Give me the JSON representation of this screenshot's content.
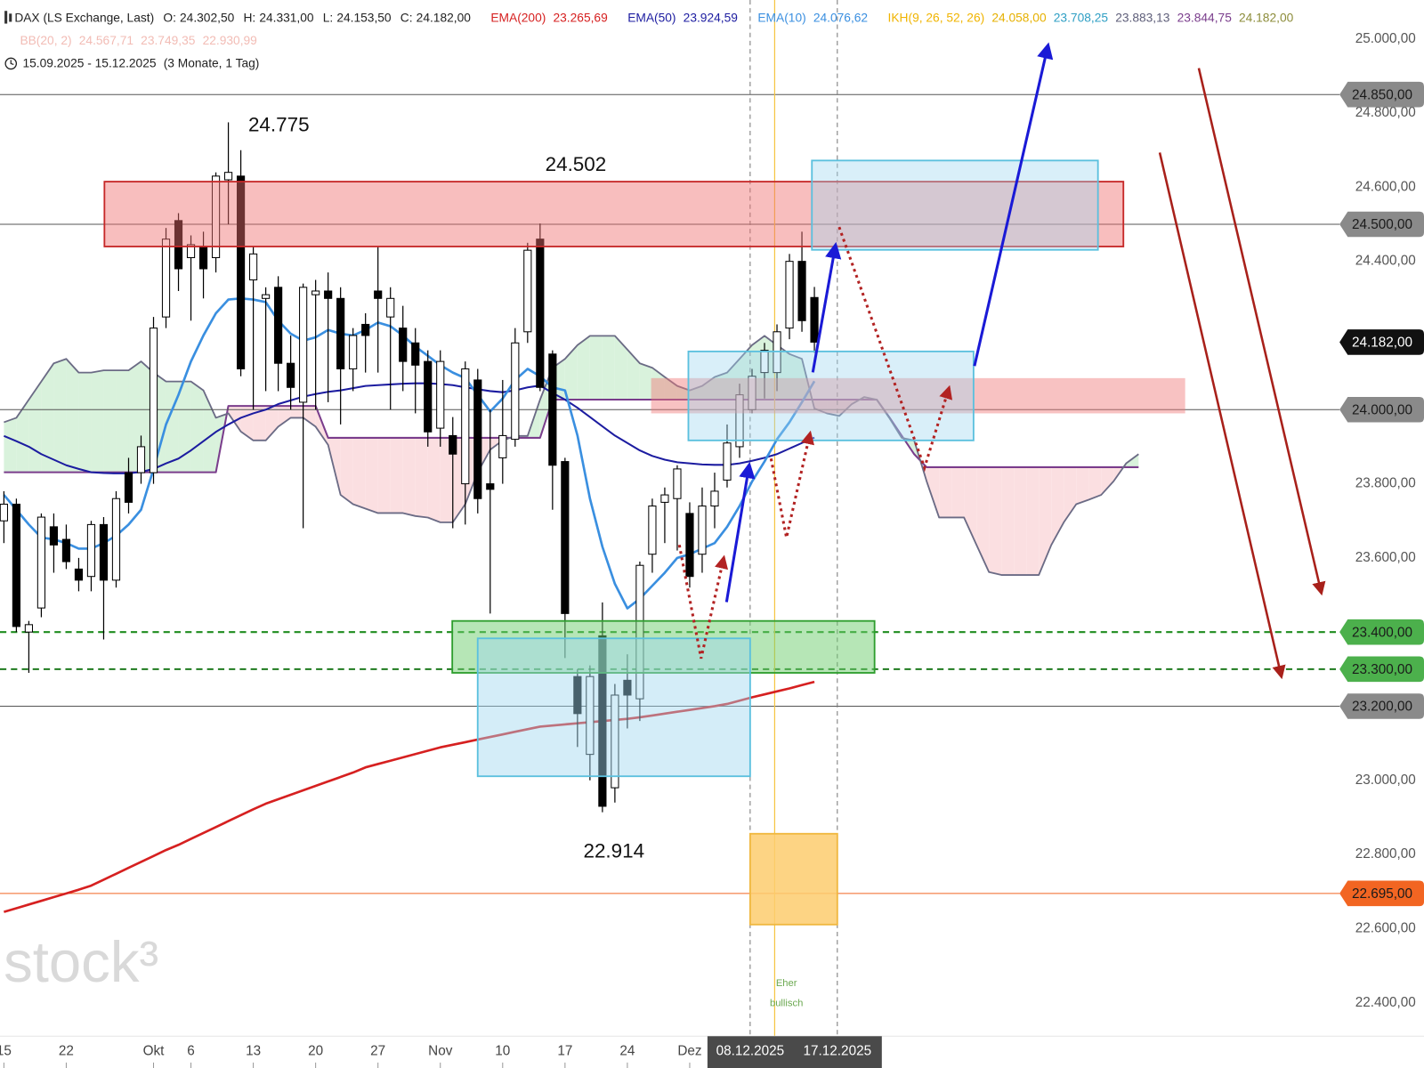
{
  "chart_data": {
    "type": "candlestick",
    "legend": {
      "symbol": "DAX (LS Exchange, Last)",
      "ohlc": [
        {
          "label": "O:",
          "text": "24.302,50"
        },
        {
          "label": "H:",
          "text": "24.331,00"
        },
        {
          "label": "L:",
          "text": "24.153,50"
        },
        {
          "label": "C:",
          "text": "24.182,00"
        }
      ],
      "date_range": "15.09.2025 - 15.12.2025",
      "range_note": "(3 Monate, 1 Tag)"
    },
    "categories": [
      "15",
      null,
      null,
      null,
      null,
      "22",
      null,
      null,
      null,
      null,
      null,
      null,
      "Okt",
      null,
      null,
      "6",
      null,
      null,
      null,
      null,
      "13",
      null,
      null,
      null,
      null,
      "20",
      null,
      null,
      null,
      null,
      "27",
      null,
      null,
      null,
      null,
      "Nov",
      null,
      null,
      null,
      null,
      "10",
      null,
      null,
      null,
      null,
      "17",
      null,
      null,
      null,
      null,
      "24",
      null,
      null,
      null,
      null,
      "Dez",
      null,
      null,
      null,
      null,
      null,
      null,
      null,
      null,
      null,
      null
    ],
    "open": [
      23700,
      23745,
      23400,
      23465,
      23684,
      23650,
      23570,
      23550,
      23690,
      23540,
      23830,
      23830,
      23830,
      24250,
      24510,
      24410,
      24440,
      24410,
      24620,
      24630,
      24350,
      24300,
      24330,
      24125,
      24020,
      24310,
      24320,
      24300,
      24110,
      24230,
      24320,
      24250,
      24220,
      24180,
      24130,
      23950,
      23930,
      23800,
      24080,
      23800,
      23870,
      23920,
      24210,
      24460,
      24150,
      23860,
      23280,
      23070,
      23390,
      22980,
      23270,
      23220,
      23610,
      23750,
      23760,
      23720,
      23610,
      23740,
      23810,
      23900,
      24000,
      24100,
      24100,
      24220,
      24400,
      24302.5
    ],
    "high": [
      23780,
      23760,
      23430,
      23720,
      23720,
      23690,
      23600,
      23700,
      23710,
      23780,
      23870,
      23930,
      24250,
      24490,
      24530,
      24470,
      24480,
      24640,
      24775,
      24700,
      24440,
      24330,
      24360,
      24200,
      24340,
      24350,
      24370,
      24330,
      24220,
      24260,
      24440,
      24330,
      24280,
      24220,
      24160,
      24160,
      23980,
      24130,
      24110,
      24000,
      24080,
      24220,
      24450,
      24502,
      24160,
      23870,
      23300,
      23310,
      23480,
      23260,
      23340,
      23590,
      23760,
      23790,
      23850,
      23750,
      23790,
      23830,
      23960,
      24070,
      24110,
      24180,
      24230,
      24420,
      24480,
      24331
    ],
    "low": [
      23640,
      23400,
      23290,
      23440,
      23560,
      23570,
      23510,
      23510,
      23380,
      23520,
      23720,
      23800,
      23800,
      24220,
      24320,
      24240,
      24300,
      24370,
      24500,
      24090,
      24000,
      24050,
      24050,
      24000,
      23680,
      24000,
      24020,
      23960,
      24050,
      24100,
      24100,
      24000,
      24050,
      23990,
      23900,
      23900,
      23680,
      23690,
      23720,
      23450,
      23800,
      23900,
      24180,
      24050,
      23730,
      23330,
      23090,
      23000,
      22914,
      22940,
      23140,
      23160,
      23560,
      23640,
      23620,
      23520,
      23560,
      23680,
      23790,
      23870,
      23990,
      24030,
      24050,
      24190,
      24210,
      24153.5
    ],
    "close": [
      23745,
      23415,
      23420,
      23710,
      23635,
      23590,
      23540,
      23690,
      23540,
      23760,
      23750,
      23900,
      24220,
      24460,
      24380,
      24445,
      24380,
      24630,
      24640,
      24110,
      24420,
      24310,
      24125,
      24060,
      24330,
      24320,
      24300,
      24110,
      24200,
      24200,
      24300,
      24300,
      24130,
      24120,
      23940,
      24130,
      23880,
      24110,
      23760,
      23785,
      23930,
      24180,
      24430,
      24060,
      23850,
      23450,
      23180,
      23280,
      22930,
      23230,
      23230,
      23580,
      23740,
      23770,
      23840,
      23550,
      23740,
      23780,
      23910,
      24040,
      24090,
      24160,
      24210,
      24400,
      24240,
      24182
    ],
    "up_color": "#ffffff",
    "down_color": "#000000",
    "indicators": [
      {
        "name": "EMA(200)",
        "color": "#d62020",
        "value_label": "23.265,69",
        "values": [
          22645,
          22655,
          22665,
          22675,
          22685,
          22695,
          22705,
          22716,
          22732,
          22748,
          22764,
          22780,
          22796,
          22812,
          22826,
          22842,
          22858,
          22874,
          22890,
          22906,
          22922,
          22937,
          22949,
          22961,
          22973,
          22985,
          22997,
          23009,
          23021,
          23035,
          23044,
          23053,
          23062,
          23071,
          23080,
          23089,
          23096,
          23103,
          23110,
          23117,
          23124,
          23131,
          23138,
          23145,
          23148,
          23151,
          23154,
          23157,
          23160,
          23163,
          23166,
          23170,
          23175,
          23180,
          23185,
          23190,
          23195,
          23200,
          23206,
          23215,
          23224,
          23232,
          23240,
          23248,
          23257,
          23265.69
        ]
      },
      {
        "name": "EMA(50)",
        "color": "#1c1ca0",
        "value_label": "23.924,59",
        "values": [
          23929,
          23915,
          23900,
          23880,
          23865,
          23850,
          23840,
          23831,
          23829,
          23828,
          23828,
          23832,
          23840,
          23855,
          23868,
          23890,
          23915,
          23940,
          23960,
          23978,
          23990,
          24000,
          24015,
          24025,
          24035,
          24042,
          24048,
          24052,
          24058,
          24064,
          24066,
          24068,
          24070,
          24071,
          24071,
          24069,
          24066,
          24060,
          24055,
          24050,
          24047,
          24052,
          24060,
          24065,
          24045,
          24027,
          24005,
          23980,
          23955,
          23930,
          23910,
          23890,
          23875,
          23865,
          23858,
          23855,
          23852,
          23851,
          23851,
          23855,
          23862,
          23870,
          23880,
          23895,
          23910,
          23924.59
        ]
      },
      {
        "name": "EMA(10)",
        "color": "#3a8fe0",
        "value_label": "24.076,62",
        "values": [
          23770,
          23730,
          23690,
          23655,
          23650,
          23640,
          23625,
          23625,
          23640,
          23660,
          23690,
          23730,
          23840,
          23960,
          24040,
          24130,
          24200,
          24260,
          24297,
          24300,
          24297,
          24290,
          24240,
          24205,
          24186,
          24195,
          24215,
          24205,
          24200,
          24215,
          24235,
          24225,
          24200,
          24170,
          24145,
          24120,
          24100,
          24085,
          24040,
          23995,
          24030,
          24080,
          24110,
          24090,
          24060,
          24052,
          23930,
          23760,
          23630,
          23530,
          23464,
          23490,
          23525,
          23560,
          23600,
          23610,
          23625,
          23640,
          23684,
          23740,
          23806,
          23860,
          23920,
          23966,
          24020,
          24076.62
        ]
      }
    ],
    "ichimoku": {
      "name": "IKH(9, 26, 52, 26)",
      "color": "#f0b400",
      "value_labels": [
        {
          "text": "24.058,00",
          "color": "#e6b000"
        },
        {
          "text": "23.708,25",
          "color": "#2f9fc4"
        },
        {
          "text": "23.883,13",
          "color": "#5f5f7a"
        },
        {
          "text": "23.844,75",
          "color": "#7a3d8c"
        },
        {
          "text": "24.182,00",
          "color": "#8c8c3a"
        }
      ],
      "span_a_color": "#6b6b85",
      "span_b_color": "#7a3d8c",
      "bull_fill": "#d9f2dc",
      "bear_fill": "#fbdfe1",
      "span_a": [
        23966,
        23978,
        24027,
        24076,
        24125,
        24137,
        24100,
        24100,
        24106,
        24106,
        24106,
        24130,
        24100,
        24076,
        24076,
        24076,
        24052,
        23978,
        23990,
        23941,
        23917,
        23917,
        23954,
        23978,
        23978,
        23954,
        23905,
        23770,
        23745,
        23733,
        23721,
        23721,
        23721,
        23713,
        23709,
        23696,
        23696,
        23745,
        23831,
        23892,
        23917,
        23929,
        23929,
        24027,
        24113,
        24137,
        24174,
        24199,
        24199,
        24199,
        24162,
        24125,
        24113,
        24088,
        24064,
        24052,
        24064,
        24088,
        24100,
        24137,
        24174,
        24199,
        24174,
        24150,
        24137,
        24003,
        23990,
        23983,
        24015,
        24034,
        24027,
        23978,
        23924,
        23917,
        23807,
        23709,
        23709,
        23709,
        23635,
        23562,
        23554,
        23554,
        23554,
        23554,
        23635,
        23696,
        23745,
        23757,
        23770,
        23807,
        23855,
        23880
      ],
      "span_b": [
        23831,
        23831,
        23831,
        23831,
        23831,
        23831,
        23831,
        23831,
        23831,
        23831,
        23831,
        23831,
        23831,
        23831,
        23831,
        23831,
        23831,
        23831,
        24010,
        24010,
        24010,
        24010,
        24010,
        24010,
        24010,
        24010,
        23924,
        23924,
        23924,
        23924,
        23924,
        23924,
        23924,
        23924,
        23924,
        23924,
        23924,
        23924,
        23924,
        23924,
        23924,
        23924,
        23924,
        23924,
        24027,
        24027,
        24027,
        24027,
        24027,
        24027,
        24027,
        24027,
        24027,
        24027,
        24027,
        24027,
        24027,
        24027,
        24027,
        24027,
        24027,
        24027,
        24027,
        24027,
        24027,
        24027,
        24027,
        24027,
        24027,
        24027,
        24027,
        23980,
        23930,
        23880,
        23844.75,
        23844.75,
        23844.75,
        23844.75,
        23844.75,
        23844.75,
        23844.75,
        23844.75,
        23844.75,
        23844.75,
        23844.75,
        23844.75,
        23844.75,
        23844.75,
        23844.75,
        23844.75,
        23844.75,
        23844.75
      ]
    },
    "bollinger": {
      "name": "BB(20, 2)",
      "color": "#f2bcb5",
      "value_labels": [
        "24.567,71",
        "23.749,35",
        "22.930,99"
      ]
    },
    "ylim": [
      22300,
      25105
    ],
    "yticks": [
      {
        "value": 25000,
        "label": "25.000,00"
      },
      {
        "value": 24800,
        "label": "24.800,00"
      },
      {
        "value": 24600,
        "label": "24.600,00"
      },
      {
        "value": 24400,
        "label": "24.400,00"
      },
      {
        "value": 23800,
        "label": "23.800,00"
      },
      {
        "value": 23600,
        "label": "23.600,00"
      },
      {
        "value": 23000,
        "label": "23.000,00"
      },
      {
        "value": 22800,
        "label": "22.800,00"
      },
      {
        "value": 22600,
        "label": "22.600,00"
      },
      {
        "value": 22400,
        "label": "22.400,00"
      }
    ],
    "price_labels": [
      {
        "value": 24850,
        "label": "24.850,00",
        "color": "#8a8a8a",
        "line_color": "#555555",
        "style": "solid"
      },
      {
        "value": 24500,
        "label": "24.500,00",
        "color": "#8a8a8a",
        "line_color": "#555555",
        "style": "solid"
      },
      {
        "value": 24182,
        "label": "24.182,00",
        "color": "#111111",
        "line_color": "#111111",
        "style": "none"
      },
      {
        "value": 24000,
        "label": "24.000,00",
        "color": "#8a8a8a",
        "line_color": "#555555",
        "style": "solid"
      },
      {
        "value": 23400,
        "label": "23.400,00",
        "color": "#4cb04c",
        "line_color": "#1e8c1e",
        "style": "dashed"
      },
      {
        "value": 23300,
        "label": "23.300,00",
        "color": "#4cb04c",
        "line_color": "#1e7a1e",
        "style": "dashed"
      },
      {
        "value": 23200,
        "label": "23.200,00",
        "color": "#8a8a8a",
        "line_color": "#555555",
        "style": "solid"
      },
      {
        "value": 22695,
        "label": "22.695,00",
        "color": "#f26522",
        "line_color": "#f26522",
        "style": "solid"
      }
    ],
    "zones": [
      {
        "low": 24440,
        "high": 24615,
        "fill": "rgba(240,110,110,0.45)",
        "stroke": "#c62828"
      },
      {
        "low": 23990,
        "high": 24085,
        "fill": "rgba(240,120,120,0.45)",
        "stroke": "none"
      },
      {
        "low": 23290,
        "high": 23430,
        "fill": "rgba(110,205,110,0.5)",
        "stroke": "#2e9e2e"
      },
      {
        "low": 23011,
        "high": 23383,
        "fill": "rgba(160,215,240,0.45)",
        "stroke": "#5bc0de"
      },
      {
        "low": 23917,
        "high": 24157,
        "fill": "rgba(160,215,240,0.4)",
        "stroke": "#5bc0de"
      },
      {
        "low": 24431,
        "high": 24672,
        "fill": "rgba(160,215,240,0.4)",
        "stroke": "#5bc0de"
      },
      {
        "low": 22611,
        "high": 22856,
        "fill": "rgba(253,205,110,0.85)",
        "stroke": "#f0b840"
      }
    ],
    "annotations": [
      {
        "value": 24775,
        "label": "24.775"
      },
      {
        "value": 24502,
        "label": "24.502"
      },
      {
        "value": 22914,
        "label": "22.914"
      }
    ],
    "marker_dates": [
      "08.12.2025",
      "17.12.2025"
    ],
    "note": [
      "Eher",
      "bullisch"
    ],
    "watermark": "stock³"
  }
}
